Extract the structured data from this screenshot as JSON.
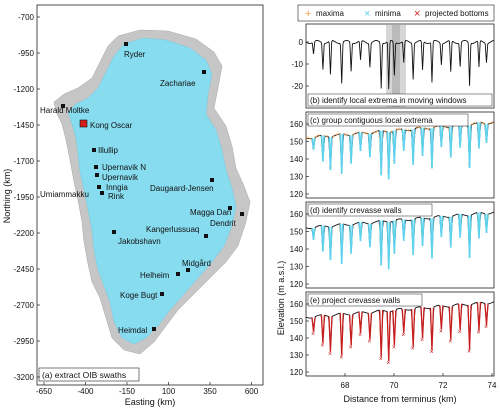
{
  "map_panel": {
    "label": "(a) extract OIB swaths",
    "xlabel": "Easting (km)",
    "ylabel": "Northing (km)",
    "x_ticks": [
      "-650",
      "-400",
      "-150",
      "100",
      "350",
      "600"
    ],
    "y_ticks": [
      "-700",
      "-950",
      "-1200",
      "-1450",
      "-1700",
      "-1950",
      "-2200",
      "-2450",
      "-2700",
      "-2950",
      "-3200"
    ],
    "sites": [
      {
        "name": "Ryder"
      },
      {
        "name": "Zachariae"
      },
      {
        "name": "Harald Moltke"
      },
      {
        "name": "Kong Oscar"
      },
      {
        "name": "Illullip"
      },
      {
        "name": "Upernavik N"
      },
      {
        "name": "Upernavik"
      },
      {
        "name": "Inngia"
      },
      {
        "name": "Rink"
      },
      {
        "name": "Umiammakku"
      },
      {
        "name": "Daugaard-Jensen"
      },
      {
        "name": "Magga Dan"
      },
      {
        "name": "Dendrit"
      },
      {
        "name": "Kangerlussuaq"
      },
      {
        "name": "Jakobshavn"
      },
      {
        "name": "Midgård"
      },
      {
        "name": "Helheim"
      },
      {
        "name": "Koge Bugt"
      },
      {
        "name": "Heimdal"
      }
    ],
    "colors": {
      "ice": "#87dcef",
      "land": "#c6c6c6",
      "marker": "#111111",
      "highlight": "#d62020"
    }
  },
  "profile_panels": {
    "legend": [
      {
        "label": "maxima",
        "marker": "+",
        "color": "#f5a04a"
      },
      {
        "label": "minima",
        "marker": "×",
        "color": "#5fd3ee"
      },
      {
        "label": "projected bottoms",
        "marker": "×",
        "color": "#c81e1e"
      }
    ],
    "panels": [
      {
        "label": "(b) identify local extrema in moving windows",
        "y_ticks": [
          "0",
          "-10",
          "-20"
        ]
      },
      {
        "label": "(c) group contiguous local extrema",
        "y_ticks": [
          "160",
          "150",
          "140",
          "130",
          "120"
        ]
      },
      {
        "label": "(d) identify crevasse walls",
        "y_ticks": [
          "160",
          "150",
          "140",
          "130",
          "120"
        ]
      },
      {
        "label": "(e) project crevasse walls",
        "y_ticks": [
          "160",
          "150",
          "140",
          "130",
          "120"
        ]
      }
    ],
    "xlabel": "Distance from terminus (km)",
    "ylabel": "Elevation (m a.s.l.)",
    "x_ticks": [
      "68",
      "70",
      "72",
      "74"
    ],
    "colors": {
      "surface": "#111111",
      "maxima": "#f5a04a",
      "minima": "#5fd3ee",
      "bottoms": "#c81e1e",
      "window": "#b4b4b4"
    }
  }
}
